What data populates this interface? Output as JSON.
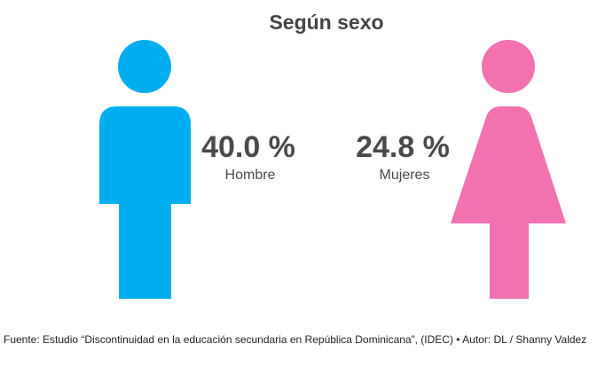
{
  "title": "Según sexo",
  "items": [
    {
      "value_label": "40.0 %",
      "label": "Hombre",
      "color": "#00aeef"
    },
    {
      "value_label": "24.8 %",
      "label": "Mujeres",
      "color": "#f272b0"
    }
  ],
  "source": "Fuente: Estudio “Discontinuidad en la educación secundaria en República Dominicana”, (IDEC) • Autor: DL / Shanny Valdez"
}
